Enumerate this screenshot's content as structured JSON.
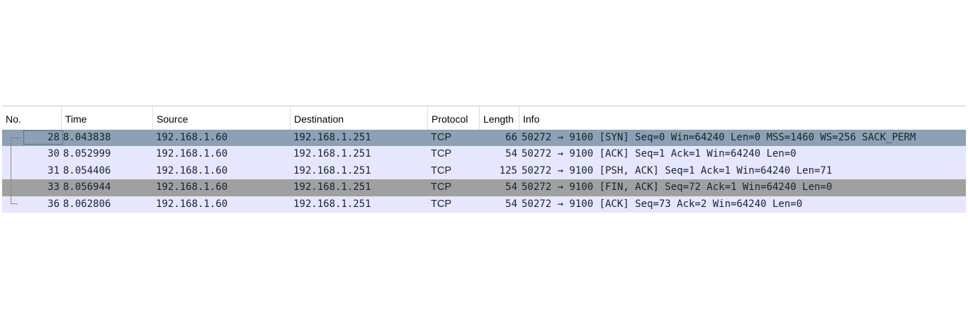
{
  "columns": {
    "no": "No.",
    "time": "Time",
    "source": "Source",
    "destination": "Destination",
    "protocol": "Protocol",
    "length": "Length",
    "info": "Info"
  },
  "packets": [
    {
      "no": "28",
      "time": "8.043838",
      "source": "192.168.1.60",
      "destination": "192.168.1.251",
      "protocol": "TCP",
      "length": "66",
      "info": "50272 → 9100 [SYN] Seq=0 Win=64240 Len=0 MSS=1460 WS=256 SACK_PERM",
      "state": "selected"
    },
    {
      "no": "30",
      "time": "8.052999",
      "source": "192.168.1.60",
      "destination": "192.168.1.251",
      "protocol": "TCP",
      "length": "54",
      "info": "50272 → 9100 [ACK] Seq=1 Ack=1 Win=64240 Len=0",
      "state": "normal"
    },
    {
      "no": "31",
      "time": "8.054406",
      "source": "192.168.1.60",
      "destination": "192.168.1.251",
      "protocol": "TCP",
      "length": "125",
      "info": "50272 → 9100 [PSH, ACK] Seq=1 Ack=1 Win=64240 Len=71",
      "state": "normal"
    },
    {
      "no": "33",
      "time": "8.056944",
      "source": "192.168.1.60",
      "destination": "192.168.1.251",
      "protocol": "TCP",
      "length": "54",
      "info": "50272 → 9100 [FIN, ACK] Seq=72 Ack=1 Win=64240 Len=0",
      "state": "fin"
    },
    {
      "no": "36",
      "time": "8.062806",
      "source": "192.168.1.60",
      "destination": "192.168.1.251",
      "protocol": "TCP",
      "length": "54",
      "info": "50272 → 9100 [ACK] Seq=73 Ack=2 Win=64240 Len=0",
      "state": "normal"
    }
  ],
  "colors": {
    "tcp_row": "#e7e6ff",
    "selected_row": "#8da0b4",
    "fin_row": "#a0a0a0"
  }
}
